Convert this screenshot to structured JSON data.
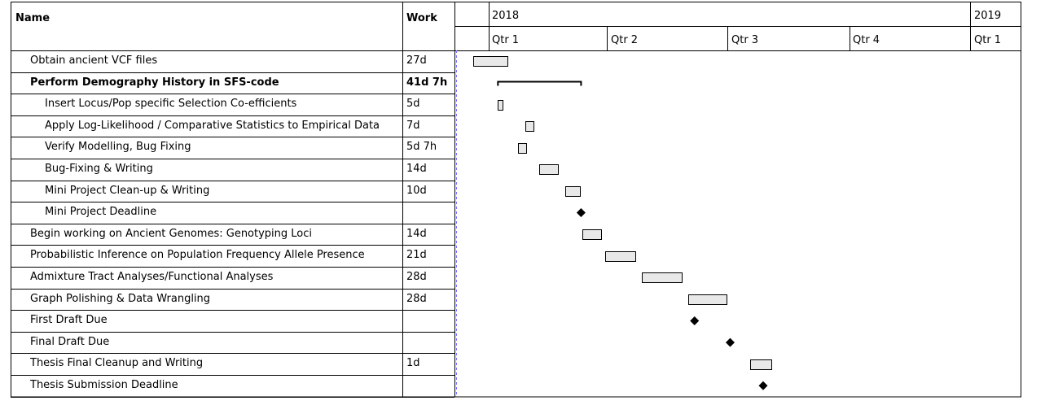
{
  "table": {
    "name_header": "Name",
    "work_header": "Work"
  },
  "timeline": {
    "years": [
      "2018",
      "2019"
    ],
    "quarters": [
      "Qtr 1",
      "Qtr 2",
      "Qtr 3",
      "Qtr 4",
      "Qtr 1"
    ]
  },
  "colors": {
    "bar_fill": "#e8e8e8",
    "today_line": "#7070ff"
  },
  "chart_data": {
    "type": "gantt",
    "tasks": [
      {
        "name": "Obtain ancient VCF files",
        "work": "27d",
        "level": 0,
        "kind": "task",
        "start": "2017-12-20",
        "end": "2018-01-15"
      },
      {
        "name": "Perform Demography History in SFS-code",
        "work": "41d 7h",
        "level": 0,
        "kind": "summary",
        "start": "2018-01-08",
        "end": "2018-03-12"
      },
      {
        "name": "Insert Locus/Pop specific Selection Co-efficients",
        "work": "5d",
        "level": 1,
        "kind": "task",
        "start": "2018-01-08",
        "end": "2018-01-11"
      },
      {
        "name": "Apply Log-Likelihood / Comparative Statistics to Empirical Data",
        "work": "7d",
        "level": 1,
        "kind": "task",
        "start": "2018-01-29",
        "end": "2018-02-04"
      },
      {
        "name": "Verify Modelling, Bug Fixing",
        "work": "5d 7h",
        "level": 1,
        "kind": "task",
        "start": "2018-01-23",
        "end": "2018-01-29"
      },
      {
        "name": "Bug-Fixing & Writing",
        "work": "14d",
        "level": 1,
        "kind": "task",
        "start": "2018-02-08",
        "end": "2018-02-22"
      },
      {
        "name": "Mini Project Clean-up & Writing",
        "work": "10d",
        "level": 1,
        "kind": "task",
        "start": "2018-02-28",
        "end": "2018-03-11"
      },
      {
        "name": "Mini Project Deadline",
        "work": "",
        "level": 1,
        "kind": "milestone",
        "start": "2018-03-12",
        "end": "2018-03-12"
      },
      {
        "name": "Begin working on Ancient Genomes: Genotyping Loci",
        "work": "14d",
        "level": 0,
        "kind": "task",
        "start": "2018-03-13",
        "end": "2018-03-27"
      },
      {
        "name": "Probabilistic Inference on Population Frequency Allele Presence",
        "work": "21d",
        "level": 0,
        "kind": "task",
        "start": "2018-03-30",
        "end": "2018-04-22"
      },
      {
        "name": "Admixture Tract Analyses/Functional Analyses",
        "work": "28d",
        "level": 0,
        "kind": "task",
        "start": "2018-04-27",
        "end": "2018-05-27"
      },
      {
        "name": "Graph Polishing & Data Wrangling",
        "work": "28d",
        "level": 0,
        "kind": "task",
        "start": "2018-06-01",
        "end": "2018-06-30"
      },
      {
        "name": "First Draft Due",
        "work": "",
        "level": 0,
        "kind": "milestone",
        "start": "2018-06-06",
        "end": "2018-06-06"
      },
      {
        "name": "Final Draft Due",
        "work": "",
        "level": 0,
        "kind": "milestone",
        "start": "2018-07-03",
        "end": "2018-07-03"
      },
      {
        "name": "Thesis Final Cleanup and Writing",
        "work": "1d",
        "level": 0,
        "kind": "task",
        "start": "2018-07-18",
        "end": "2018-08-03"
      },
      {
        "name": "Thesis Submission Deadline",
        "work": "",
        "level": 0,
        "kind": "milestone",
        "start": "2018-07-28",
        "end": "2018-07-28"
      }
    ]
  }
}
